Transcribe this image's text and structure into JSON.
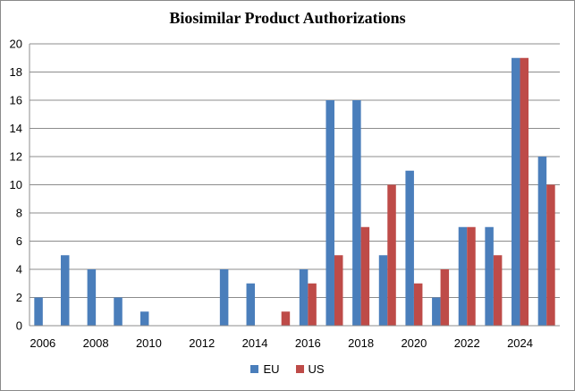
{
  "chart_data": {
    "type": "bar",
    "title": "Biosimilar Product Authorizations",
    "xlabel": "",
    "ylabel": "",
    "x": [
      2006,
      2007,
      2008,
      2009,
      2010,
      2011,
      2012,
      2013,
      2014,
      2015,
      2016,
      2017,
      2018,
      2019,
      2020,
      2021,
      2022,
      2023,
      2024,
      2025
    ],
    "x_tick_labels": [
      "2006",
      "2008",
      "2010",
      "2012",
      "2014",
      "2016",
      "2018",
      "2020",
      "2022",
      "2024"
    ],
    "y_ticks": [
      0,
      2,
      4,
      6,
      8,
      10,
      12,
      14,
      16,
      18,
      20
    ],
    "ylim": [
      0,
      20
    ],
    "grid": "horizontal",
    "legend": "bottom",
    "series": [
      {
        "name": "EU",
        "color": "#4a7ebb",
        "values": [
          2,
          5,
          4,
          2,
          1,
          0,
          0,
          4,
          3,
          0,
          4,
          16,
          16,
          5,
          11,
          2,
          7,
          7,
          19,
          12
        ]
      },
      {
        "name": "US",
        "color": "#be4b48",
        "values": [
          0,
          0,
          0,
          0,
          0,
          0,
          0,
          0,
          0,
          1,
          3,
          5,
          7,
          10,
          3,
          4,
          7,
          5,
          19,
          10
        ]
      }
    ]
  }
}
